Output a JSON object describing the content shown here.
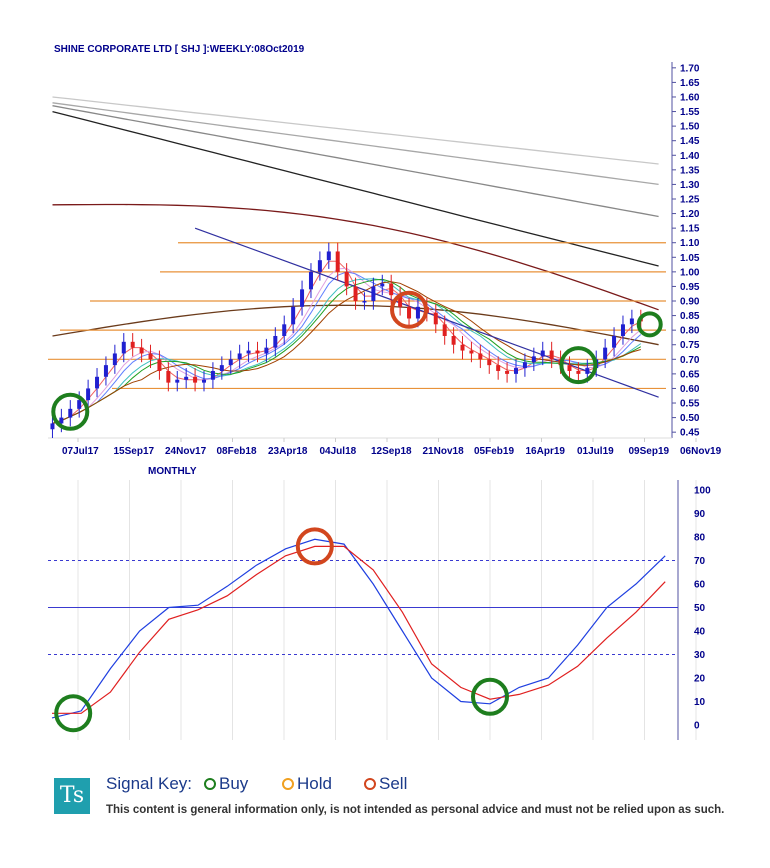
{
  "weekly": {
    "title": "SHINE CORPORATE LTD [ SHJ ]:WEEKLY:08Oct2019",
    "y_ticks": [
      "1.70",
      "1.65",
      "1.60",
      "1.55",
      "1.50",
      "1.45",
      "1.40",
      "1.35",
      "1.30",
      "1.25",
      "1.20",
      "1.15",
      "1.10",
      "1.05",
      "1.00",
      "0.95",
      "0.90",
      "0.85",
      "0.80",
      "0.75",
      "0.70",
      "0.65",
      "0.60",
      "0.55",
      "0.50",
      "0.45"
    ],
    "x_ticks": [
      "07Jul17",
      "15Sep17",
      "24Nov17",
      "08Feb18",
      "23Apr18",
      "04Jul18",
      "12Sep18",
      "21Nov18",
      "05Feb19",
      "16Apr19",
      "01Jul19",
      "09Sep19",
      "06Nov19"
    ]
  },
  "monthly": {
    "title": "MONTHLY",
    "y_ticks": [
      "100",
      "90",
      "80",
      "70",
      "60",
      "50",
      "40",
      "30",
      "20",
      "10",
      "0"
    ]
  },
  "key": {
    "logo_text": "Ts",
    "label": "Signal Key:",
    "buy": "Buy",
    "hold": "Hold",
    "sell": "Sell",
    "disclaimer": "This content is general information only, is not intended as personal advice and must not be relied upon as such."
  },
  "colors": {
    "buy": "#1e7e1e",
    "hold": "#f0a020",
    "sell": "#d2461e",
    "up_candle": "#2020d0",
    "down_candle": "#e02020",
    "support_lines": "#e8923a",
    "stoch_k": "#1f3fe0",
    "stoch_d": "#e02020"
  },
  "chart_data": [
    {
      "type": "candlestick",
      "title": "SHINE CORPORATE LTD [ SHJ ]:WEEKLY:08Oct2019",
      "ylim": [
        0.43,
        1.72
      ],
      "x_dates": [
        "07Jul17",
        "15Sep17",
        "24Nov17",
        "08Feb18",
        "23Apr18",
        "04Jul18",
        "12Sep18",
        "21Nov18",
        "05Feb19",
        "16Apr19",
        "01Jul19",
        "09Sep19",
        "06Nov19"
      ],
      "close_series": [
        [
          0,
          0.48
        ],
        [
          1,
          0.5
        ],
        [
          2,
          0.53
        ],
        [
          3,
          0.56
        ],
        [
          4,
          0.6
        ],
        [
          5,
          0.64
        ],
        [
          6,
          0.68
        ],
        [
          7,
          0.72
        ],
        [
          8,
          0.76
        ],
        [
          9,
          0.74
        ],
        [
          10,
          0.72
        ],
        [
          11,
          0.7
        ],
        [
          12,
          0.66
        ],
        [
          13,
          0.62
        ],
        [
          14,
          0.63
        ],
        [
          15,
          0.64
        ],
        [
          16,
          0.62
        ],
        [
          17,
          0.63
        ],
        [
          18,
          0.66
        ],
        [
          19,
          0.68
        ],
        [
          20,
          0.7
        ],
        [
          21,
          0.72
        ],
        [
          22,
          0.73
        ],
        [
          23,
          0.72
        ],
        [
          24,
          0.74
        ],
        [
          25,
          0.78
        ],
        [
          26,
          0.82
        ],
        [
          27,
          0.88
        ],
        [
          28,
          0.94
        ],
        [
          29,
          1.0
        ],
        [
          30,
          1.04
        ],
        [
          31,
          1.07
        ],
        [
          32,
          1.0
        ],
        [
          33,
          0.95
        ],
        [
          34,
          0.9
        ],
        [
          35,
          0.9
        ],
        [
          36,
          0.95
        ],
        [
          37,
          0.96
        ],
        [
          38,
          0.92
        ],
        [
          39,
          0.88
        ],
        [
          40,
          0.84
        ],
        [
          41,
          0.88
        ],
        [
          42,
          0.86
        ],
        [
          43,
          0.82
        ],
        [
          44,
          0.78
        ],
        [
          45,
          0.75
        ],
        [
          46,
          0.73
        ],
        [
          47,
          0.72
        ],
        [
          48,
          0.7
        ],
        [
          49,
          0.68
        ],
        [
          50,
          0.66
        ],
        [
          51,
          0.65
        ],
        [
          52,
          0.67
        ],
        [
          53,
          0.69
        ],
        [
          54,
          0.71
        ],
        [
          55,
          0.73
        ],
        [
          56,
          0.7
        ],
        [
          57,
          0.68
        ],
        [
          58,
          0.66
        ],
        [
          59,
          0.65
        ],
        [
          60,
          0.67
        ],
        [
          61,
          0.7
        ],
        [
          62,
          0.74
        ],
        [
          63,
          0.78
        ],
        [
          64,
          0.82
        ],
        [
          65,
          0.84
        ],
        [
          66,
          0.83
        ]
      ],
      "horizontal_levels": [
        1.1,
        1.0,
        0.9,
        0.8,
        0.7,
        0.6
      ],
      "trendline": {
        "from": [
          16,
          1.15
        ],
        "to": [
          68,
          0.57
        ]
      },
      "moving_averages": [
        {
          "color": "#c8c8c8",
          "points": [
            [
              0,
              1.6
            ],
            [
              68,
              1.37
            ]
          ]
        },
        {
          "color": "#a8a8a8",
          "points": [
            [
              0,
              1.58
            ],
            [
              68,
              1.3
            ]
          ]
        },
        {
          "color": "#888888",
          "points": [
            [
              0,
              1.57
            ],
            [
              68,
              1.19
            ]
          ]
        },
        {
          "color": "#222222",
          "points": [
            [
              0,
              1.55
            ],
            [
              68,
              1.02
            ]
          ]
        },
        {
          "color": "#7a1a1a",
          "points": [
            [
              0,
              1.23
            ],
            [
              68,
              0.87
            ]
          ]
        },
        {
          "color": "#6b3b1b",
          "points": [
            [
              0,
              0.78
            ],
            [
              68,
              0.75
            ]
          ]
        }
      ],
      "signals": [
        {
          "type": "buy",
          "x": 2,
          "y": 0.52
        },
        {
          "type": "sell",
          "x": 40,
          "y": 0.87
        },
        {
          "type": "buy",
          "x": 59,
          "y": 0.68
        },
        {
          "type": "buy",
          "x": 67,
          "y": 0.82
        }
      ]
    },
    {
      "type": "line",
      "title": "MONTHLY",
      "ylim": [
        0,
        100
      ],
      "series": [
        {
          "name": "",
          "color": "#1f3fe0",
          "values": [
            [
              0,
              3
            ],
            [
              1,
              6
            ],
            [
              2,
              24
            ],
            [
              3,
              40
            ],
            [
              4,
              50
            ],
            [
              5,
              51
            ],
            [
              6,
              59
            ],
            [
              7,
              68
            ],
            [
              8,
              75
            ],
            [
              9,
              79
            ],
            [
              10,
              77
            ],
            [
              11,
              60
            ],
            [
              12,
              40
            ],
            [
              13,
              20
            ],
            [
              14,
              10
            ],
            [
              15,
              9
            ],
            [
              16,
              16
            ],
            [
              17,
              20
            ],
            [
              18,
              34
            ],
            [
              19,
              50
            ],
            [
              20,
              60
            ],
            [
              21,
              72
            ]
          ]
        },
        {
          "name": "",
          "color": "#e02020",
          "values": [
            [
              0,
              5
            ],
            [
              1,
              5
            ],
            [
              2,
              14
            ],
            [
              3,
              31
            ],
            [
              4,
              45
            ],
            [
              5,
              49
            ],
            [
              6,
              55
            ],
            [
              7,
              64
            ],
            [
              8,
              72
            ],
            [
              9,
              76
            ],
            [
              10,
              76
            ],
            [
              11,
              66
            ],
            [
              12,
              48
            ],
            [
              13,
              26
            ],
            [
              14,
              16
            ],
            [
              15,
              11
            ],
            [
              16,
              13
            ],
            [
              17,
              17
            ],
            [
              18,
              25
            ],
            [
              19,
              37
            ],
            [
              20,
              48
            ],
            [
              21,
              61
            ]
          ]
        }
      ],
      "reference_lines": [
        70,
        50,
        30
      ],
      "signals": [
        {
          "type": "buy",
          "x": 1,
          "y": 5
        },
        {
          "type": "sell",
          "x": 9,
          "y": 76
        },
        {
          "type": "buy",
          "x": 15,
          "y": 12
        }
      ]
    }
  ]
}
